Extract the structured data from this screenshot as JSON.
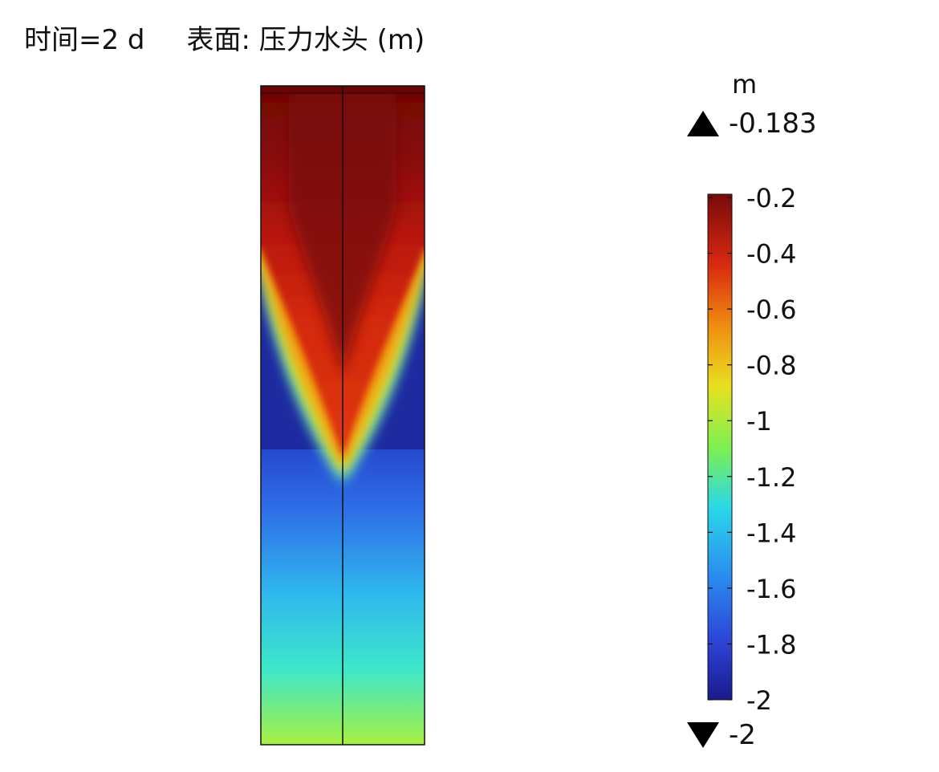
{
  "header": {
    "time_label": "时间=2 d",
    "surface_label": "表面: 压力水头 (m)"
  },
  "colorbar": {
    "unit": "m",
    "max_label": "-0.183",
    "min_label": "-2"
  },
  "chart_data": {
    "type": "heatmap",
    "title": "表面: 压力水头 (m)",
    "subtitle": "时间=2 d",
    "quantity": "pressure head",
    "unit": "m",
    "range": [
      -2,
      -0.183
    ],
    "colormap": "rainbow (jet)",
    "colorbar_ticks": [
      "-0.2",
      "-0.4",
      "-0.6",
      "-0.8",
      "-1",
      "-1.2",
      "-1.4",
      "-1.6",
      "-1.8",
      "-2"
    ],
    "tick_values": [
      -0.2,
      -0.4,
      -0.6,
      -0.8,
      -1.0,
      -1.2,
      -1.4,
      -1.6,
      -1.8,
      -2.0
    ],
    "field_description_values": {
      "top_region": -0.2,
      "wetting_front_tip": -1.3,
      "below_front": -1.9,
      "bottom_edge": -0.95
    },
    "legend_position": "right",
    "grid": false
  }
}
